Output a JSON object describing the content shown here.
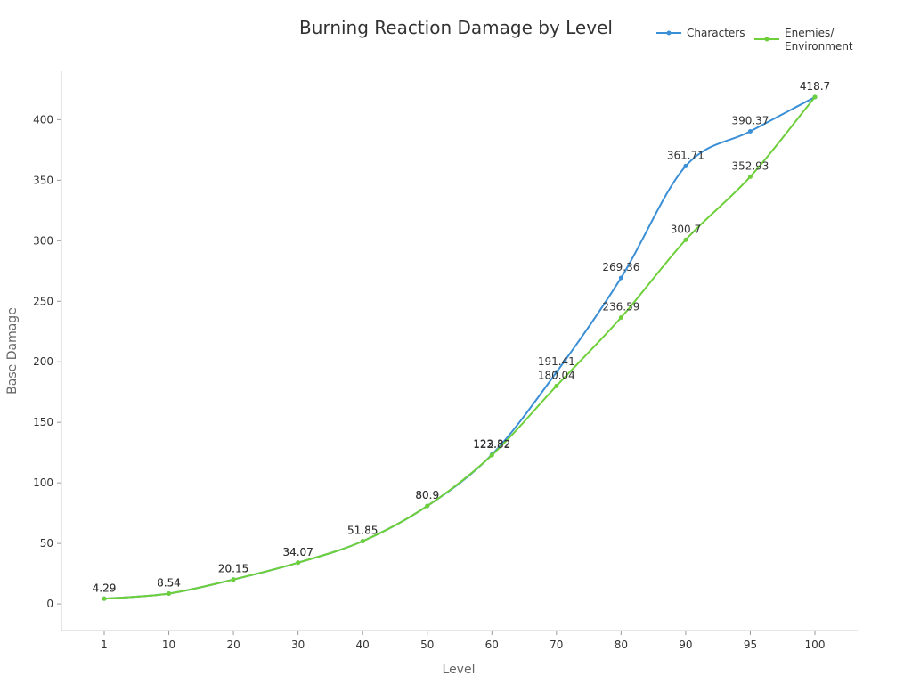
{
  "chart_data": {
    "type": "line",
    "title": "Burning Reaction Damage by Level",
    "xlabel": "Level",
    "ylabel": "Base Damage",
    "categories": [
      "1",
      "10",
      "20",
      "30",
      "40",
      "50",
      "60",
      "70",
      "80",
      "90",
      "95",
      "100"
    ],
    "ylim": [
      -22,
      440
    ],
    "yticks": [
      0,
      50,
      100,
      150,
      200,
      250,
      300,
      350,
      400
    ],
    "grid": false,
    "legend_position": "top-right",
    "series": [
      {
        "name": "Characters",
        "color": "#3a8fd6",
        "values": [
          4.29,
          8.54,
          20.15,
          34.07,
          51.85,
          80.9,
          123.32,
          191.41,
          269.36,
          361.71,
          390.37,
          418.7
        ]
      },
      {
        "name": "Enemies/\nEnvironment",
        "color": "#6dcf3a",
        "values": [
          4.29,
          8.54,
          20.15,
          34.07,
          51.85,
          80.9,
          122.82,
          180.04,
          236.59,
          300.7,
          352.93,
          418.7
        ]
      }
    ]
  }
}
